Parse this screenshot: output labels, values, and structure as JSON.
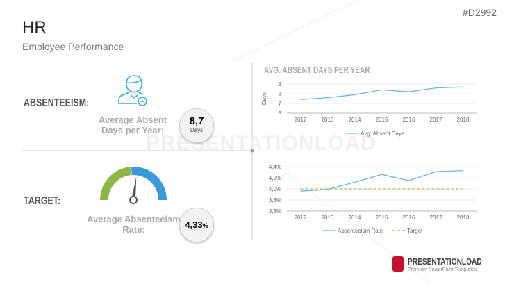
{
  "header": {
    "title": "HR",
    "subtitle": "Employee Performance",
    "code": "#D2992"
  },
  "left": {
    "absenteeism_label": "ABSENTEEISM:",
    "avg_days_label": "Average Absent Days per Year:",
    "avg_days_value": "8,7",
    "avg_days_unit": "Days",
    "target_label": "TARGET:",
    "avg_rate_label": "Average Absenteeism Rate:",
    "avg_rate_value": "4,33",
    "avg_rate_unit": "%",
    "gauge": {
      "green_fraction": 0.47,
      "needle_fraction": 0.54,
      "colors": {
        "green": "#8db548",
        "blue": "#3a9ad9"
      }
    }
  },
  "watermark": "PRESENTATIONLOAD",
  "logo": {
    "name": "PRESENTATIONLOAD",
    "tagline": "Premium PowerPoint Templates"
  },
  "chart_data": [
    {
      "type": "line",
      "title": "AVG. ABSENT DAYS PER YEAR",
      "ylabel": "Days",
      "xlabel": "",
      "categories": [
        "2012",
        "2013",
        "2014",
        "2015",
        "2016",
        "2017",
        "2018"
      ],
      "yticks": [
        "6",
        "7",
        "8",
        "9"
      ],
      "ylim": [
        6,
        9
      ],
      "grid": true,
      "legend": "bottom",
      "series": [
        {
          "name": "Avg. Absent Days",
          "values": [
            7.4,
            7.6,
            7.9,
            8.4,
            8.2,
            8.6,
            8.7
          ],
          "color": "#6cb4e4"
        }
      ]
    },
    {
      "type": "line",
      "title": "",
      "ylabel": "",
      "xlabel": "",
      "categories": [
        "2012",
        "2013",
        "2014",
        "2015",
        "2016",
        "2017",
        "2018"
      ],
      "yticks": [
        "3,6%",
        "3,8%",
        "4,0%",
        "4,2%",
        "4,4%"
      ],
      "ylim": [
        3.6,
        4.4
      ],
      "grid": true,
      "legend": "bottom",
      "series": [
        {
          "name": "Absenteeism Rate",
          "values": [
            3.96,
            3.99,
            4.12,
            4.26,
            4.15,
            4.31,
            4.33
          ],
          "color": "#6cb4e4"
        },
        {
          "name": "Target",
          "values": [
            4.0,
            4.0,
            4.0,
            4.0,
            4.0,
            4.0,
            4.0
          ],
          "color": "#9cc15a",
          "dashed": true
        }
      ]
    }
  ]
}
